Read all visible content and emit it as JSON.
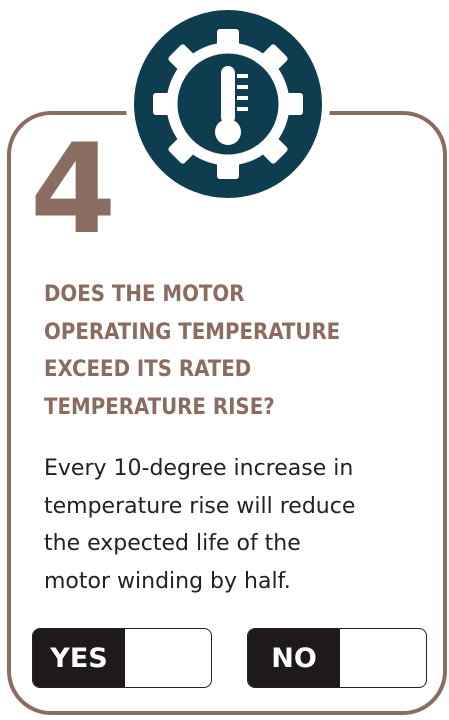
{
  "step": "4",
  "heading": [
    "DOES THE MOTOR",
    "OPERATING TEMPERATURE",
    "EXCEED ITS RATED",
    "TEMPERATURE RISE?"
  ],
  "body": [
    "Every 10-degree increase in",
    "temperature rise will reduce",
    "the expected life of the",
    "motor winding by half."
  ],
  "buttons": [
    "YES",
    "NO"
  ]
}
